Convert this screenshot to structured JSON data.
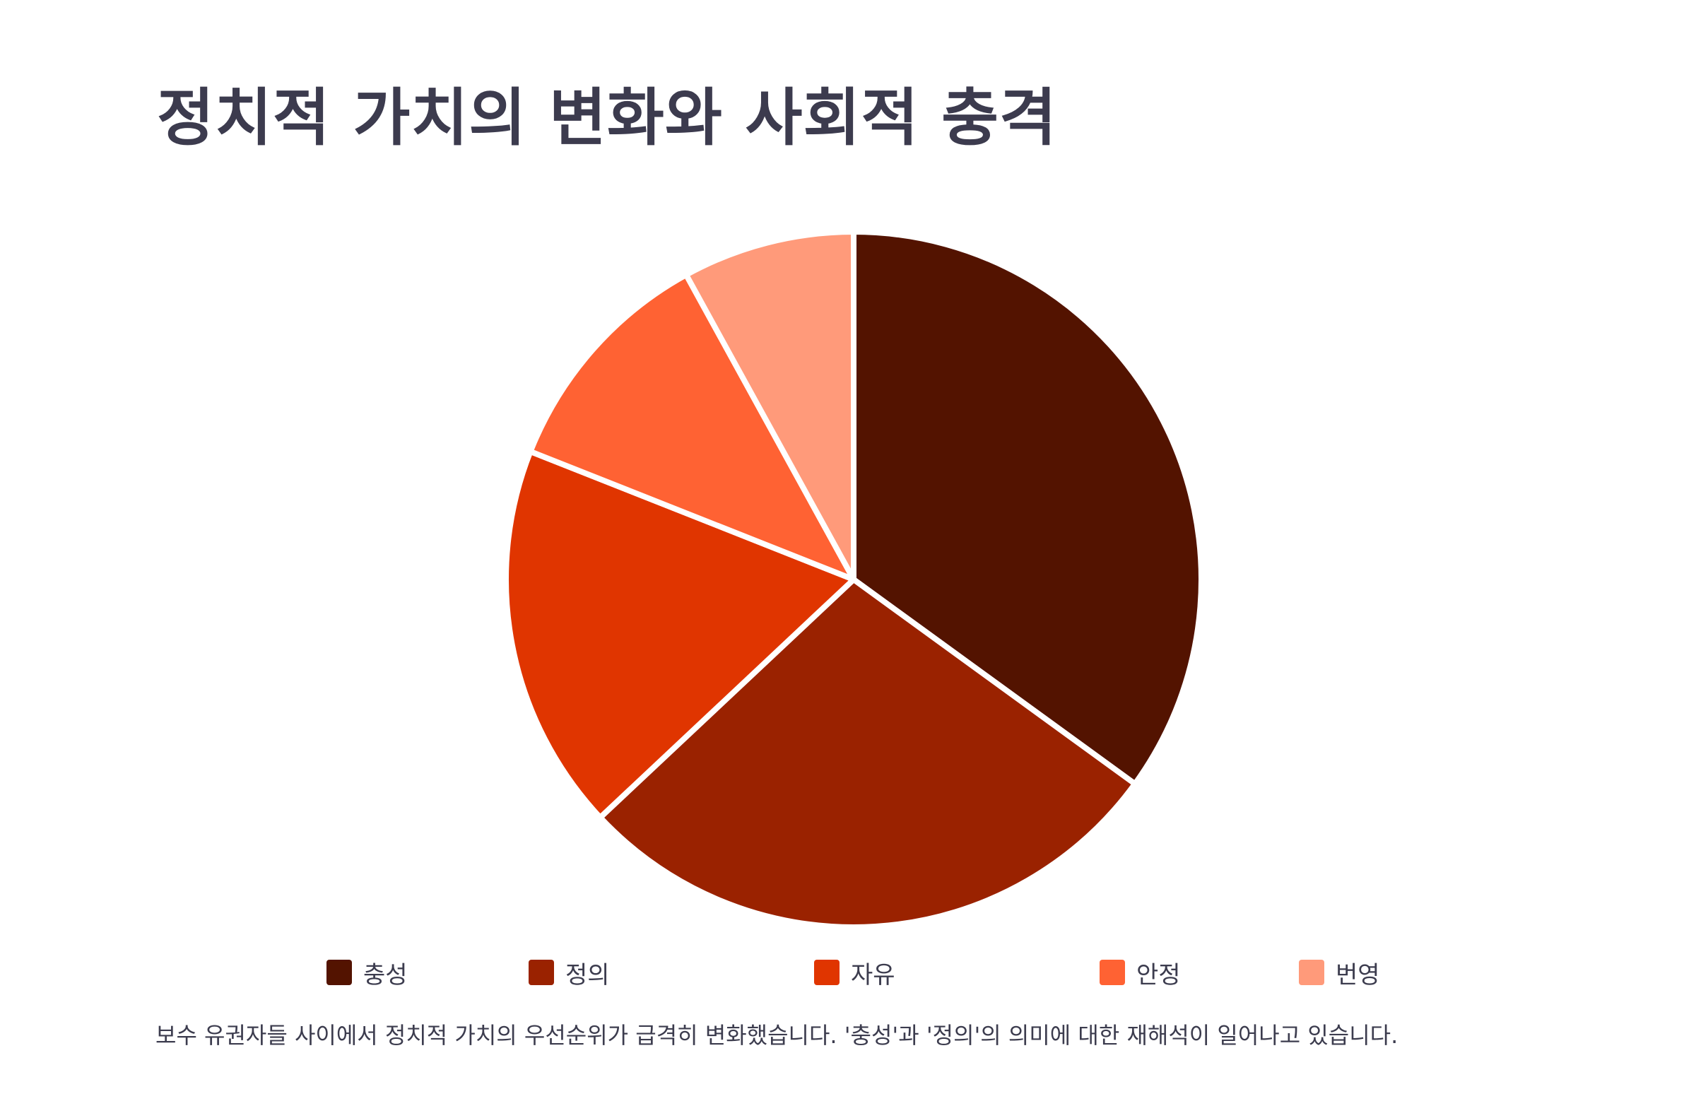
{
  "title": "정치적 가치의 변화와 사회적 충격",
  "caption": "보수 유권자들 사이에서 정치적 가치의 우선순위가 급격히 변화했습니다. '충성'과 '정의'의 의미에 대한 재해석이 일어나고 있습니다.",
  "chart_data": {
    "type": "pie",
    "title": "정치적 가치의 변화와 사회적 충격",
    "categories": [
      "충성",
      "정의",
      "자유",
      "안정",
      "번영"
    ],
    "values": [
      35,
      28,
      18,
      11,
      8
    ],
    "colors": [
      "#531300",
      "#9a2200",
      "#e03500",
      "#ff6233",
      "#ff9a7a"
    ],
    "legend_position": "bottom",
    "start_angle_deg": 0,
    "direction": "clockwise"
  },
  "legend": {
    "items": [
      {
        "label": "충성",
        "color": "#531300"
      },
      {
        "label": "정의",
        "color": "#9a2200"
      },
      {
        "label": "자유",
        "color": "#e03500"
      },
      {
        "label": "안정",
        "color": "#ff6233"
      },
      {
        "label": "번영",
        "color": "#ff9a7a"
      }
    ]
  }
}
